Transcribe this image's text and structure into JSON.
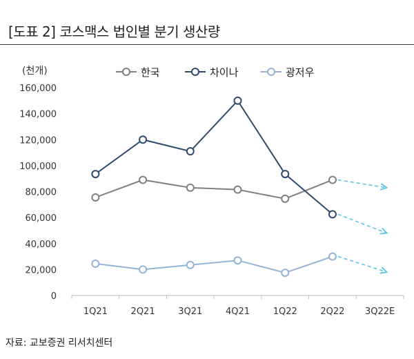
{
  "title": "[도표 2] 코스맥스 법인별 분기 생산량",
  "source": "자료: 교보증권 리서치센터",
  "chart_data": {
    "type": "line",
    "title": "[도표 2] 코스맥스 법인별 분기 생산량",
    "unit_label": "(천개)",
    "categories": [
      "1Q21",
      "2Q21",
      "3Q21",
      "4Q21",
      "1Q22",
      "2Q22",
      "3Q22E"
    ],
    "ylim": [
      0,
      160000
    ],
    "yticks": [
      0,
      20000,
      40000,
      60000,
      80000,
      100000,
      120000,
      140000,
      160000
    ],
    "ytick_labels": [
      "0",
      "20,000",
      "40,000",
      "60,000",
      "80,000",
      "100,000",
      "120,000",
      "140,000",
      "160,000"
    ],
    "grid": false,
    "legend_position": "top",
    "series": [
      {
        "name": "한국",
        "color": "#808080",
        "values": [
          75500,
          89000,
          83000,
          81500,
          74500,
          89000,
          null
        ],
        "projection_to": 83000
      },
      {
        "name": "차이나",
        "color": "#2e4a6b",
        "values": [
          93500,
          120000,
          111000,
          150000,
          93500,
          62500,
          null
        ],
        "projection_to": 48000
      },
      {
        "name": "광저우",
        "color": "#93b4d6",
        "values": [
          24500,
          20000,
          23500,
          27000,
          17500,
          30000,
          null
        ],
        "projection_to": 18000
      }
    ]
  }
}
